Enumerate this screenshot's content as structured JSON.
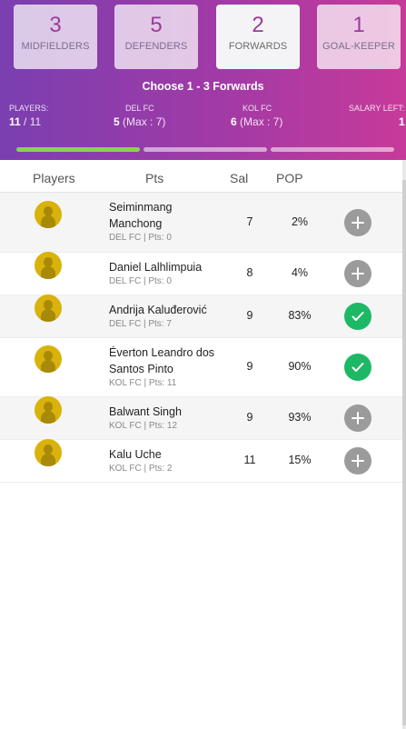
{
  "positions": [
    {
      "count": "3",
      "label": "MIDFIELDERS"
    },
    {
      "count": "5",
      "label": "DEFENDERS"
    },
    {
      "count": "2",
      "label": "FORWARDS"
    },
    {
      "count": "1",
      "label": "GOAL-KEEPER"
    }
  ],
  "choose_text": "Choose 1 - 3 Forwards",
  "stats": {
    "players": {
      "label": "PLAYERS:",
      "value": "11",
      "total": " / 11"
    },
    "team1": {
      "label": "DEL FC",
      "value": "5",
      "max": " (Max : 7)"
    },
    "team2": {
      "label": "KOL FC",
      "value": "6",
      "max": " (Max : 7)"
    },
    "salary": {
      "label": "SALARY LEFT:",
      "value": "1"
    }
  },
  "columns": {
    "players": "Players",
    "pts": "Pts",
    "sal": "Sal",
    "pop": "POP"
  },
  "players": [
    {
      "name": "Seiminmang Manchong",
      "meta": "DEL FC | Pts: 0",
      "sal": "7",
      "pop": "2%",
      "selected": false
    },
    {
      "name": "Daniel Lalhlimpuia",
      "meta": "DEL FC | Pts: 0",
      "sal": "8",
      "pop": "4%",
      "selected": false
    },
    {
      "name": "Andrija Kaluđerović",
      "meta": "DEL FC | Pts: 7",
      "sal": "9",
      "pop": "83%",
      "selected": true
    },
    {
      "name": "Éverton Leandro dos Santos Pinto",
      "meta": "KOL FC | Pts: 11",
      "sal": "9",
      "pop": "90%",
      "selected": true
    },
    {
      "name": "Balwant Singh",
      "meta": "KOL FC | Pts: 12",
      "sal": "9",
      "pop": "93%",
      "selected": false
    },
    {
      "name": "Kalu Uche",
      "meta": "KOL FC | Pts: 2",
      "sal": "11",
      "pop": "15%",
      "selected": false
    }
  ],
  "icons": {
    "add": "plus-icon",
    "selected": "check-icon",
    "avatar": "player-avatar-icon"
  },
  "colors": {
    "accent": "#9b3b9d",
    "selected": "#1db866",
    "progress": "#8fd14f"
  },
  "selection_progress": [
    1,
    0,
    0
  ]
}
